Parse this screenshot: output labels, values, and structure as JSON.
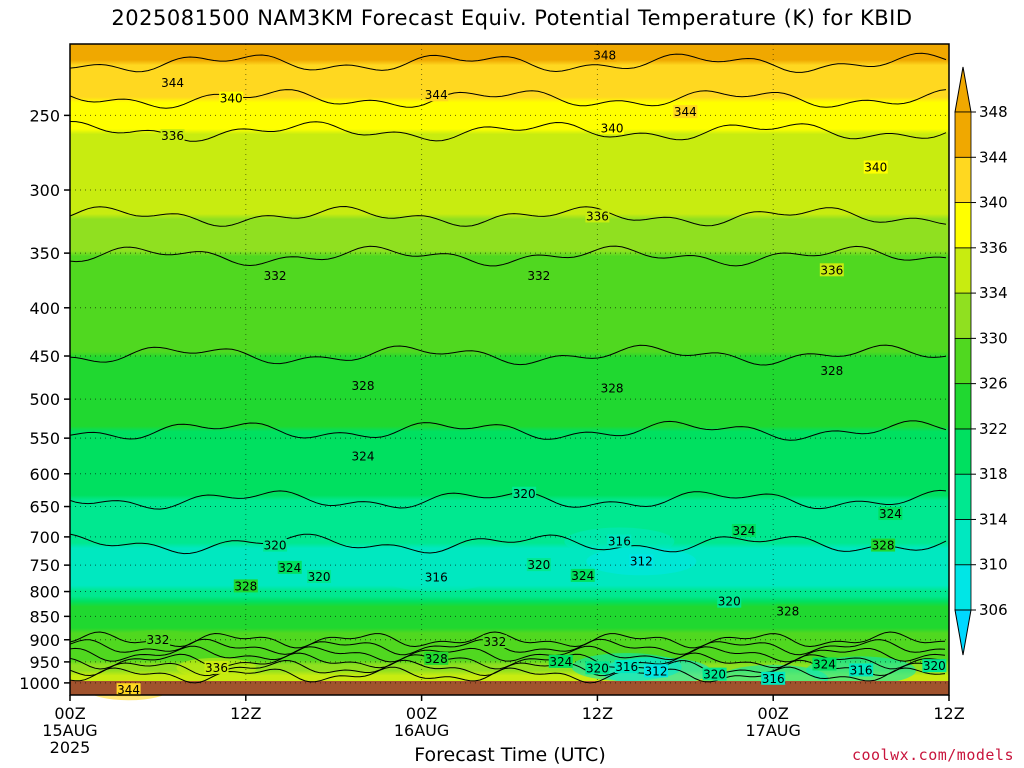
{
  "title": "2025081500 NAM3KM Forecast Equiv. Potential Temperature (K) for KBID",
  "credit": "coolwx.com/models",
  "chart_data": {
    "type": "heatmap",
    "title": "2025081500 NAM3KM Forecast Equiv. Potential Temperature (K) for KBID",
    "xlabel": "Forecast Time (UTC)",
    "ylabel": "",
    "y_scale": "log",
    "y_reversed": true,
    "ylim": [
      1030,
      210
    ],
    "yticks": [
      250,
      300,
      350,
      400,
      450,
      500,
      550,
      600,
      650,
      700,
      750,
      800,
      850,
      900,
      950,
      1000
    ],
    "xticks": [
      {
        "hour": 0,
        "label": "00Z",
        "sub1": "15AUG",
        "sub2": "2025"
      },
      {
        "hour": 12,
        "label": "12Z",
        "sub1": "",
        "sub2": ""
      },
      {
        "hour": 24,
        "label": "00Z",
        "sub1": "16AUG",
        "sub2": ""
      },
      {
        "hour": 36,
        "label": "12Z",
        "sub1": "",
        "sub2": ""
      },
      {
        "hour": 48,
        "label": "00Z",
        "sub1": "17AUG",
        "sub2": ""
      },
      {
        "hour": 60,
        "label": "12Z",
        "sub1": "",
        "sub2": ""
      }
    ],
    "xlim": [
      0,
      60
    ],
    "grid": true,
    "colorbar_levels": [
      306,
      310,
      314,
      318,
      322,
      326,
      330,
      334,
      336,
      340,
      344,
      348
    ],
    "colorbar_colors": [
      "#00d8ff",
      "#00e6e6",
      "#00e8c0",
      "#00e890",
      "#00e060",
      "#20d830",
      "#50d820",
      "#90e020",
      "#c8ec10",
      "#ffff00",
      "#ffd820",
      "#f0a800"
    ],
    "ground_color": "#a0522d",
    "theta_e_profile": [
      {
        "p": 220,
        "k": 348
      },
      {
        "p": 240,
        "k": 344
      },
      {
        "p": 260,
        "k": 340
      },
      {
        "p": 290,
        "k": 338
      },
      {
        "p": 320,
        "k": 336
      },
      {
        "p": 370,
        "k": 333
      },
      {
        "p": 420,
        "k": 331
      },
      {
        "p": 480,
        "k": 329
      },
      {
        "p": 540,
        "k": 326
      },
      {
        "p": 600,
        "k": 324
      },
      {
        "p": 660,
        "k": 321
      },
      {
        "p": 730,
        "k": 317
      },
      {
        "p": 780,
        "k": 316
      },
      {
        "p": 830,
        "k": 326
      },
      {
        "p": 880,
        "k": 330
      },
      {
        "p": 930,
        "k": 332
      },
      {
        "p": 980,
        "k": 336
      },
      {
        "p": 1010,
        "k": 342
      }
    ],
    "contour_labels": [
      {
        "text": "348",
        "hour": 36.5,
        "p": 216
      },
      {
        "text": "344",
        "hour": 7,
        "p": 231
      },
      {
        "text": "344",
        "hour": 25,
        "p": 238
      },
      {
        "text": "344",
        "hour": 42,
        "p": 248
      },
      {
        "text": "340",
        "hour": 11,
        "p": 240
      },
      {
        "text": "340",
        "hour": 37,
        "p": 258
      },
      {
        "text": "340",
        "hour": 55,
        "p": 284
      },
      {
        "text": "336",
        "hour": 7,
        "p": 263
      },
      {
        "text": "336",
        "hour": 36,
        "p": 320
      },
      {
        "text": "336",
        "hour": 52,
        "p": 365
      },
      {
        "text": "332",
        "hour": 14,
        "p": 370
      },
      {
        "text": "332",
        "hour": 32,
        "p": 370
      },
      {
        "text": "328",
        "hour": 20,
        "p": 484
      },
      {
        "text": "328",
        "hour": 37,
        "p": 487
      },
      {
        "text": "328",
        "hour": 52,
        "p": 467
      },
      {
        "text": "324",
        "hour": 20,
        "p": 575
      },
      {
        "text": "324",
        "hour": 56,
        "p": 662
      },
      {
        "text": "324",
        "hour": 46,
        "p": 690
      },
      {
        "text": "324",
        "hour": 15,
        "p": 755
      },
      {
        "text": "324",
        "hour": 35,
        "p": 770
      },
      {
        "text": "324",
        "hour": 33.5,
        "p": 950
      },
      {
        "text": "324",
        "hour": 51.5,
        "p": 956
      },
      {
        "text": "320",
        "hour": 31,
        "p": 630
      },
      {
        "text": "320",
        "hour": 14,
        "p": 715
      },
      {
        "text": "320",
        "hour": 17,
        "p": 772
      },
      {
        "text": "320",
        "hour": 32,
        "p": 750
      },
      {
        "text": "320",
        "hour": 45,
        "p": 820
      },
      {
        "text": "320",
        "hour": 36,
        "p": 965
      },
      {
        "text": "320",
        "hour": 44,
        "p": 980
      },
      {
        "text": "320",
        "hour": 59,
        "p": 960
      },
      {
        "text": "316",
        "hour": 37.5,
        "p": 708
      },
      {
        "text": "316",
        "hour": 25,
        "p": 773
      },
      {
        "text": "316",
        "hour": 38,
        "p": 962
      },
      {
        "text": "316",
        "hour": 48,
        "p": 990
      },
      {
        "text": "316",
        "hour": 54,
        "p": 970
      },
      {
        "text": "312",
        "hour": 39,
        "p": 743
      },
      {
        "text": "312",
        "hour": 40,
        "p": 972
      },
      {
        "text": "328",
        "hour": 12,
        "p": 790
      },
      {
        "text": "328",
        "hour": 49,
        "p": 840
      },
      {
        "text": "328",
        "hour": 55.5,
        "p": 715
      },
      {
        "text": "328",
        "hour": 25,
        "p": 943
      },
      {
        "text": "332",
        "hour": 6,
        "p": 900
      },
      {
        "text": "332",
        "hour": 29,
        "p": 905
      },
      {
        "text": "336",
        "hour": 10,
        "p": 964
      },
      {
        "text": "344",
        "hour": 4,
        "p": 1018
      }
    ]
  }
}
